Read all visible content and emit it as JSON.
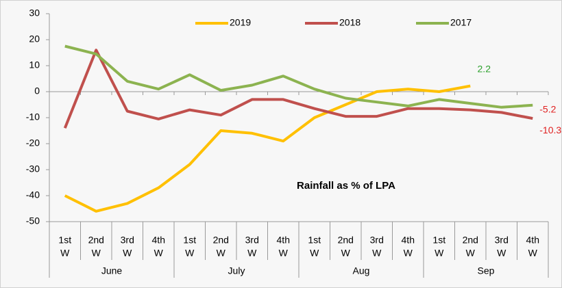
{
  "chart_data": {
    "type": "line",
    "annotation": "Rainfall as % of LPA",
    "categories": [
      [
        "1st",
        "W"
      ],
      [
        "2nd",
        "W"
      ],
      [
        "3rd",
        "W"
      ],
      [
        "4th",
        "W"
      ],
      [
        "1st",
        "W"
      ],
      [
        "2nd",
        "W"
      ],
      [
        "3rd",
        "W"
      ],
      [
        "4th",
        "W"
      ],
      [
        "1st",
        "W"
      ],
      [
        "2nd",
        "W"
      ],
      [
        "3rd",
        "W"
      ],
      [
        "4th",
        "W"
      ],
      [
        "1st",
        "W"
      ],
      [
        "2nd",
        "W"
      ],
      [
        "3rd",
        "W"
      ],
      [
        "4th",
        "W"
      ]
    ],
    "groups": [
      {
        "label": "June",
        "span": 4
      },
      {
        "label": "July",
        "span": 4
      },
      {
        "label": "Aug",
        "span": 4
      },
      {
        "label": "Sep",
        "span": 4
      }
    ],
    "series": [
      {
        "name": "2019",
        "color": "#ffc000",
        "label_color": "#2ca02c",
        "values": [
          -40,
          -46,
          -43,
          -37,
          -28,
          -15,
          -16,
          -19,
          -10,
          -5,
          0,
          1,
          0,
          2.2,
          null,
          null
        ],
        "value_labels": [
          null,
          null,
          null,
          null,
          null,
          null,
          null,
          null,
          null,
          null,
          null,
          null,
          null,
          "2.2",
          null,
          null
        ]
      },
      {
        "name": "2018",
        "color": "#c0504d",
        "label_color": "#e02020",
        "values": [
          -14,
          16,
          -7.5,
          -10.5,
          -7,
          -9,
          -3,
          -3,
          -6.5,
          -9.5,
          -9.5,
          -6.5,
          -6.5,
          -7,
          -8,
          -10.3
        ],
        "value_labels": [
          null,
          null,
          null,
          null,
          null,
          null,
          null,
          null,
          null,
          null,
          null,
          null,
          null,
          null,
          null,
          "-10.3"
        ]
      },
      {
        "name": "2017",
        "color": "#8cb350",
        "label_color": "#e02020",
        "values": [
          17.5,
          14.5,
          4,
          1,
          6.5,
          0.5,
          2.5,
          6,
          1,
          -2.5,
          -4,
          -5.5,
          -3,
          -4.5,
          -6,
          -5.2
        ],
        "value_labels": [
          null,
          null,
          null,
          null,
          null,
          null,
          null,
          null,
          null,
          null,
          null,
          null,
          null,
          null,
          null,
          "-5.2"
        ]
      }
    ],
    "ylim": [
      -50,
      30
    ],
    "yticks": [
      -50,
      -40,
      -30,
      -20,
      -10,
      0,
      10,
      20,
      30
    ],
    "legend": "top"
  }
}
